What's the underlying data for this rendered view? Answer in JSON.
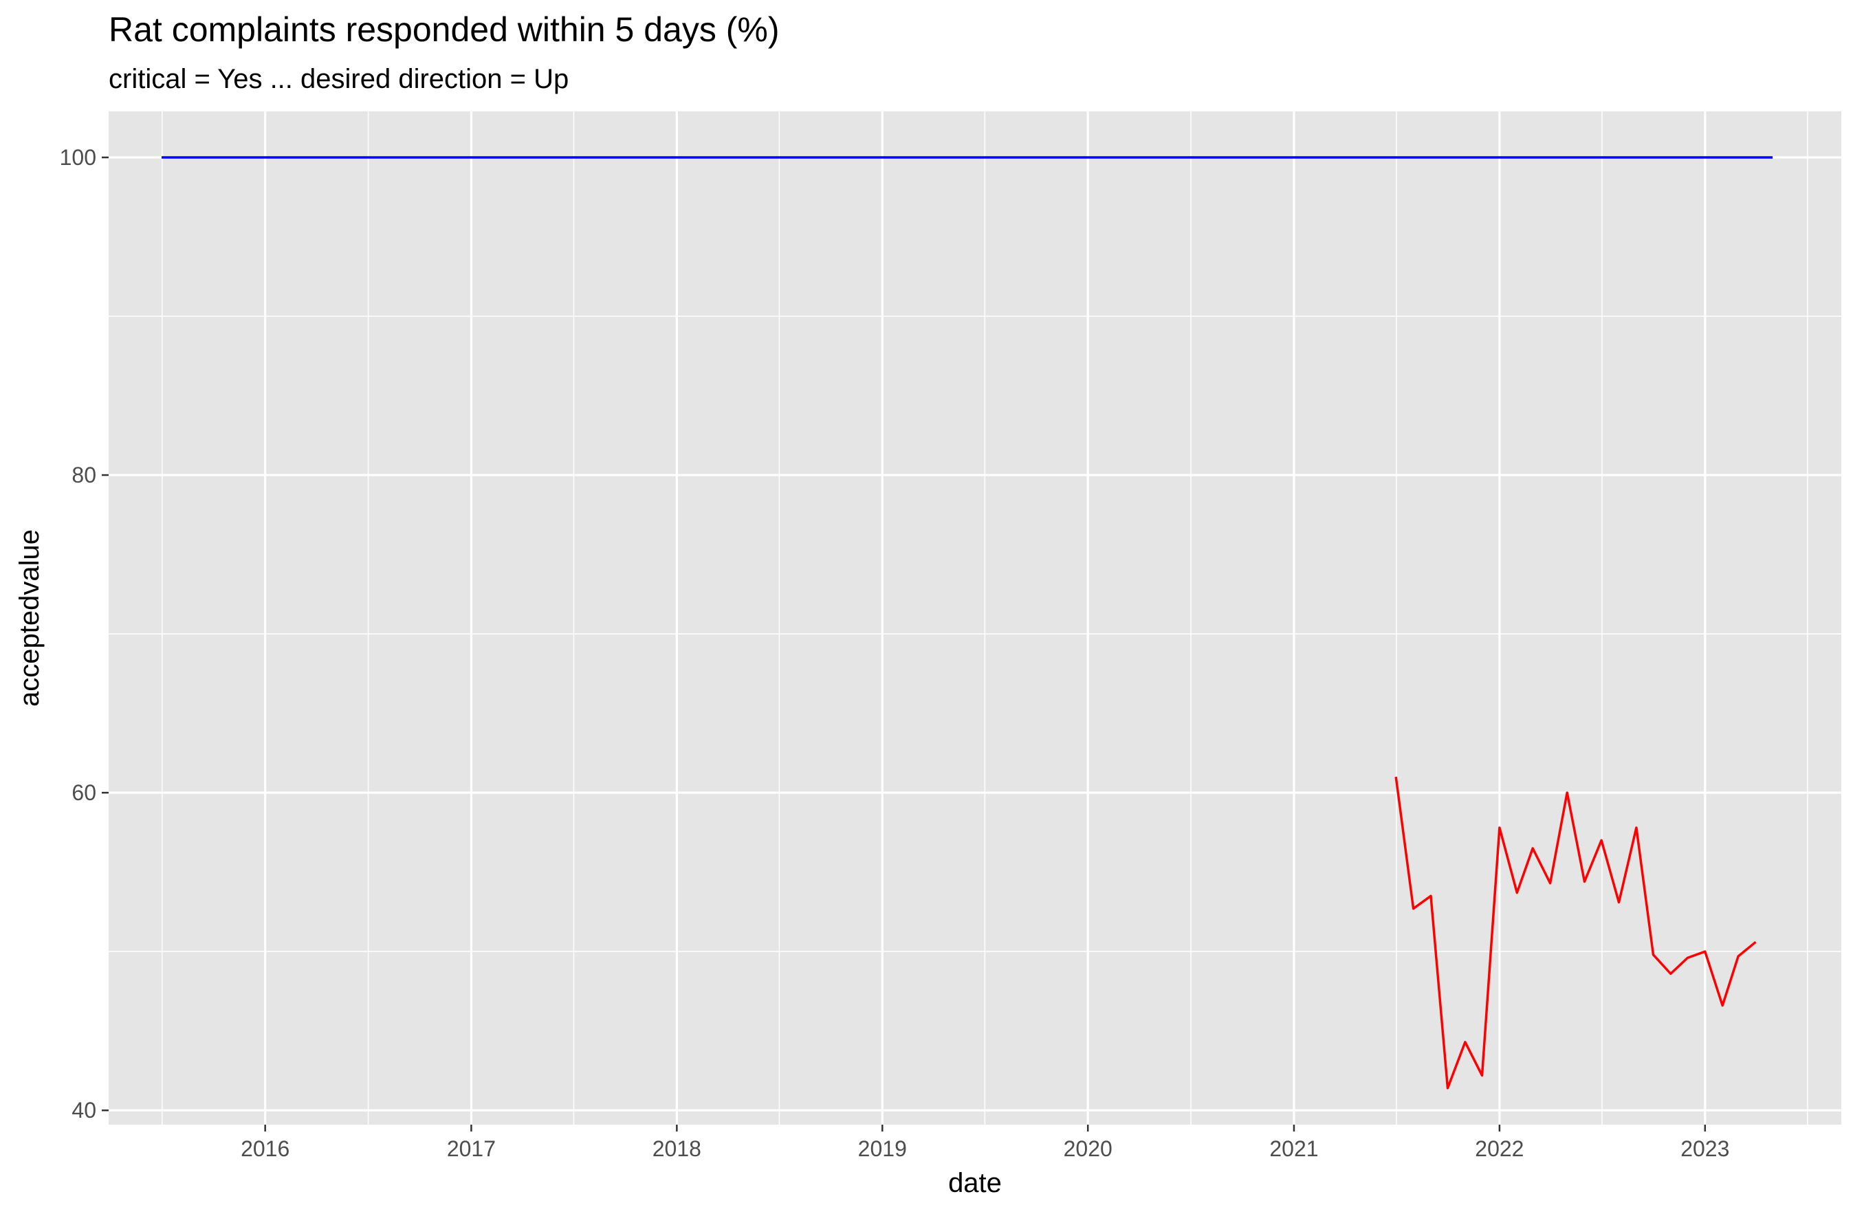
{
  "chart_data": {
    "type": "line",
    "title": "Rat complaints responded within 5 days (%)",
    "subtitle": "critical = Yes ... desired direction = Up",
    "xlabel": "date",
    "ylabel": "acceptedvalue",
    "x_tick_labels": [
      "2016",
      "2017",
      "2018",
      "2019",
      "2020",
      "2021",
      "2022",
      "2023"
    ],
    "y_tick_labels": [
      "40",
      "60",
      "80",
      "100"
    ],
    "ylim": [
      39.1,
      102.9
    ],
    "xlim": [
      "2015-03-29",
      "2023-08-31"
    ],
    "grid": true,
    "legend": "none",
    "background": "#e5e5e5",
    "series": [
      {
        "color": "#0000ff",
        "x": [
          "2015-07-01",
          "2023-05-01"
        ],
        "y": [
          100,
          100
        ]
      },
      {
        "color": "#ff0000",
        "x": [
          "2021-07-01",
          "2021-08-01",
          "2021-09-01",
          "2021-10-01",
          "2021-11-01",
          "2021-12-01",
          "2022-01-01",
          "2022-02-01",
          "2022-03-01",
          "2022-04-01",
          "2022-05-01",
          "2022-06-01",
          "2022-07-01",
          "2022-08-01",
          "2022-09-01",
          "2022-10-01",
          "2022-11-01",
          "2022-12-01",
          "2023-01-01",
          "2023-02-01",
          "2023-03-01",
          "2023-04-01"
        ],
        "y": [
          61,
          52.7,
          53.5,
          41.4,
          44.3,
          42.2,
          57.8,
          53.7,
          56.5,
          54.3,
          60,
          54.4,
          57,
          53.1,
          57.8,
          49.8,
          48.6,
          49.6,
          50,
          46.6,
          49.7,
          50.6
        ]
      }
    ]
  }
}
